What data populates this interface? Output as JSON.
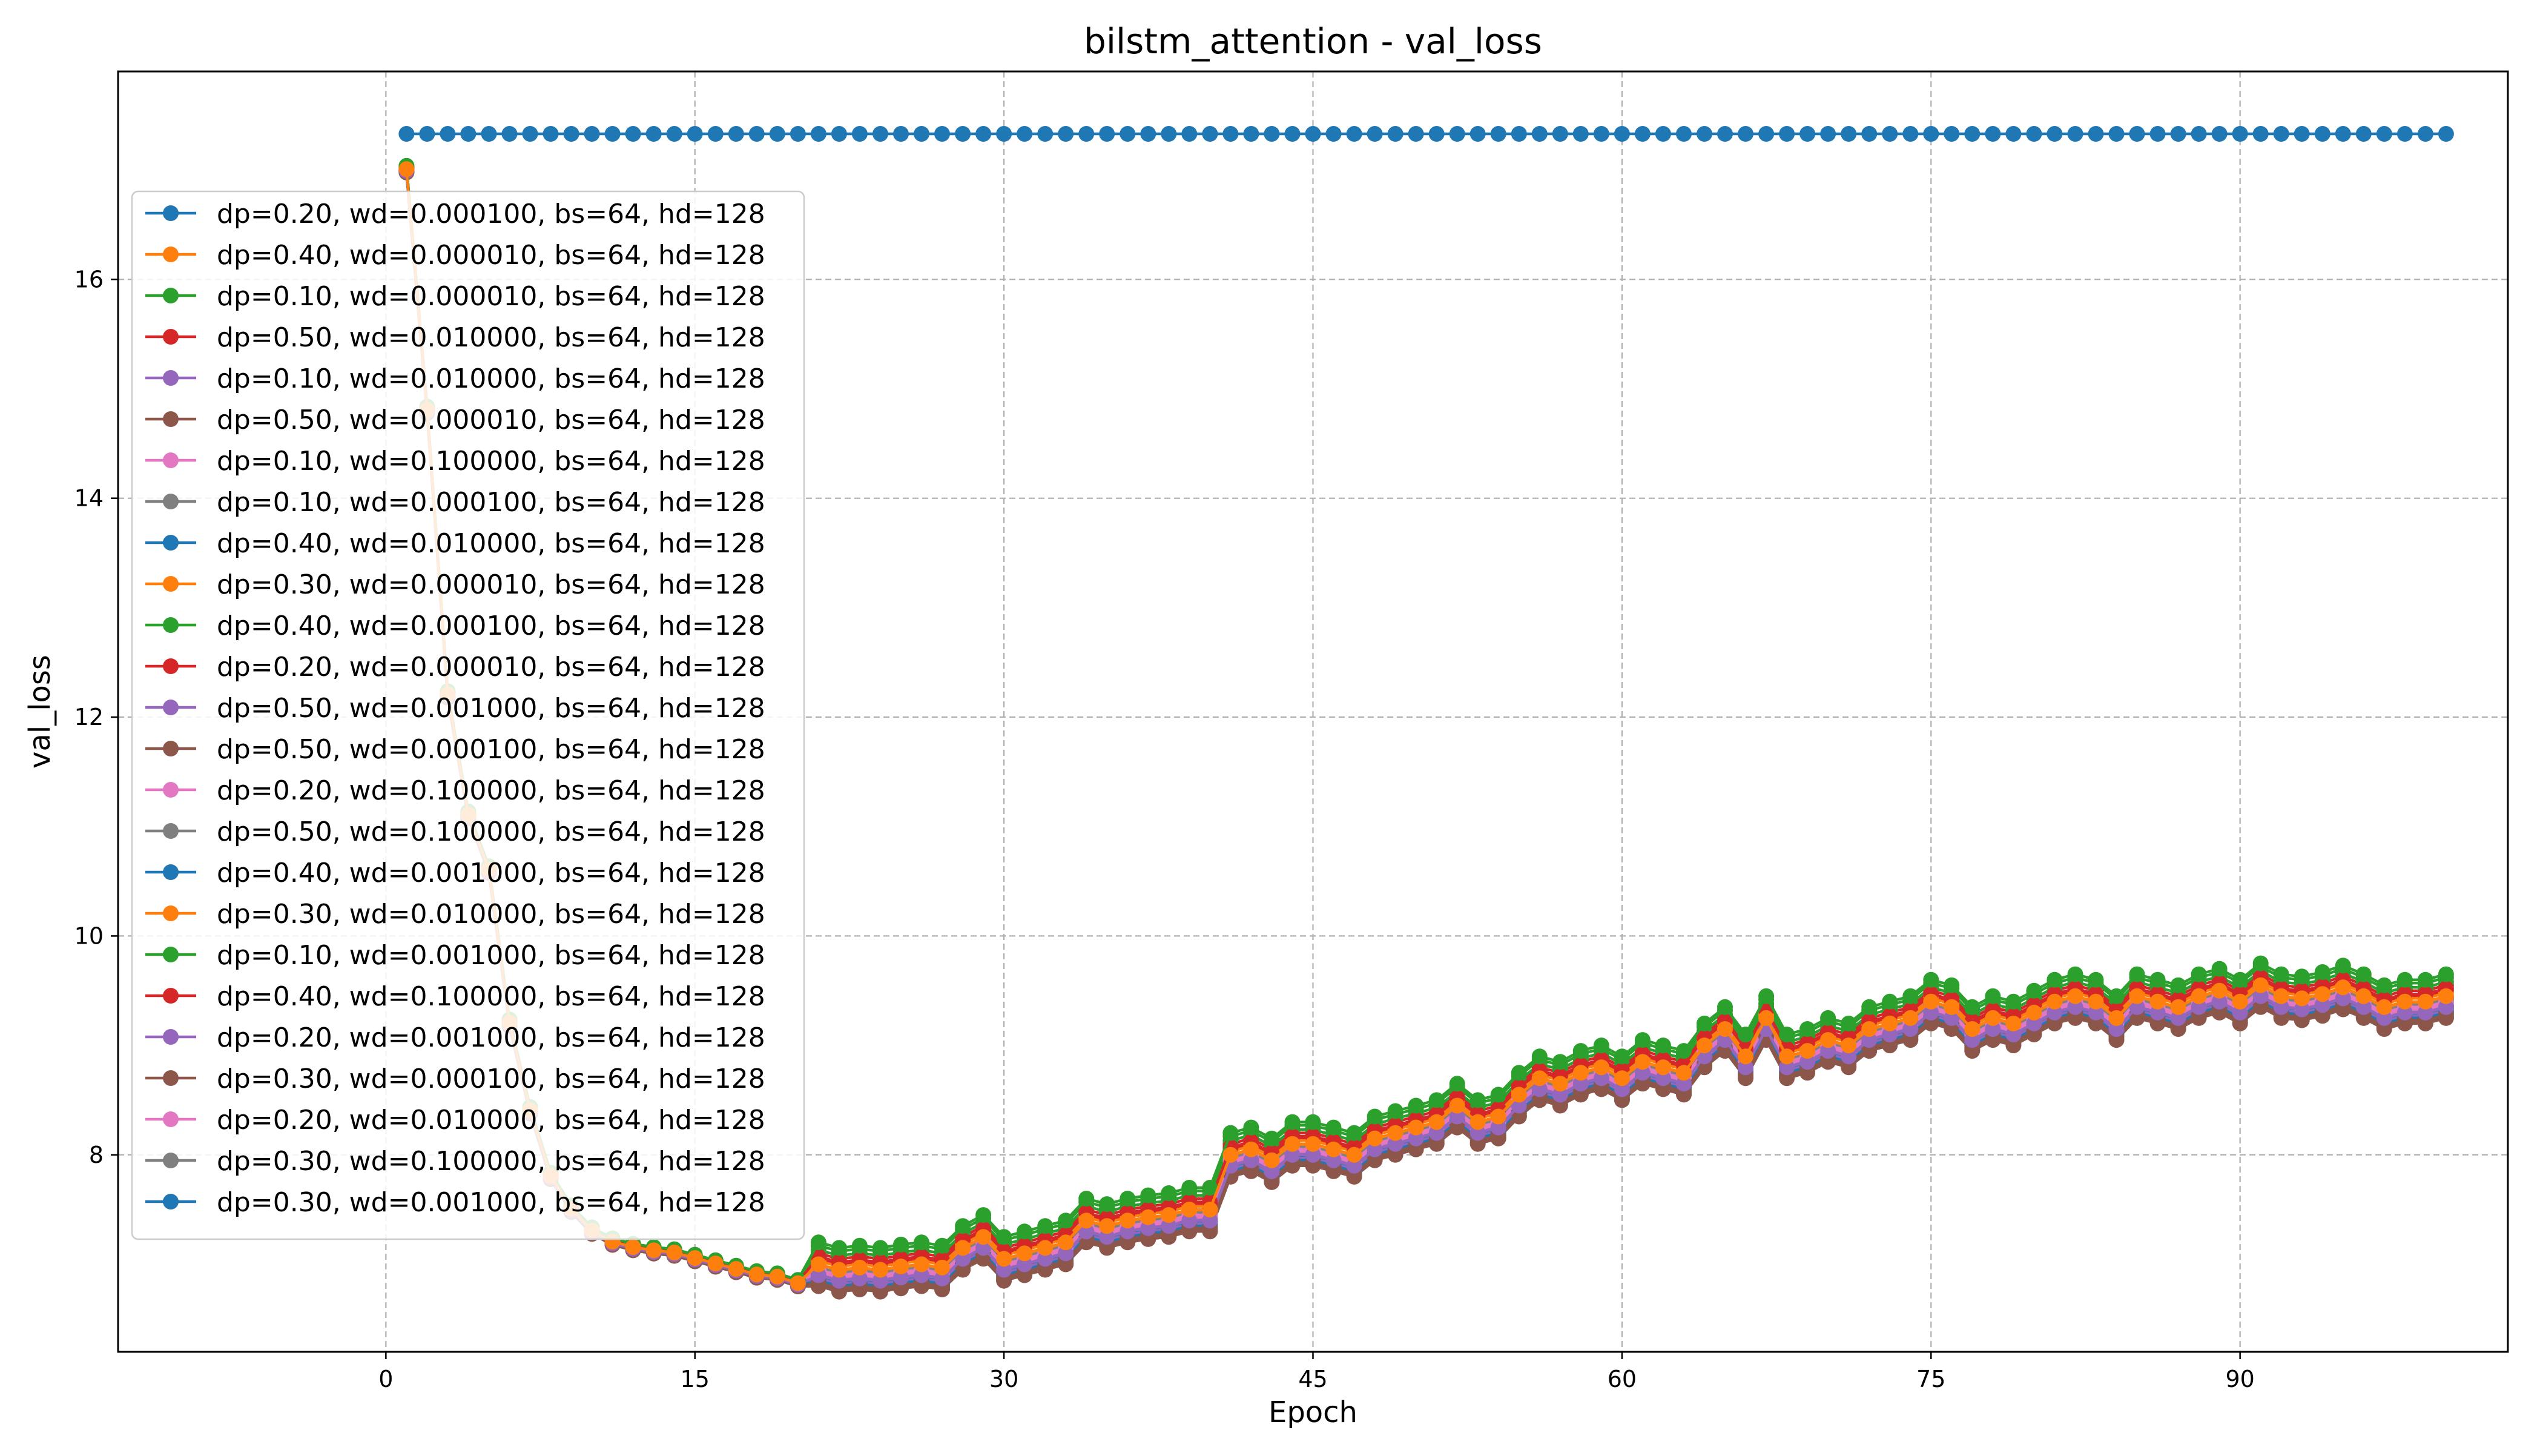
{
  "chart_data": {
    "type": "line",
    "title": "bilstm_attention - val_loss",
    "xlabel": "Epoch",
    "ylabel": "val_loss",
    "xlim": [
      -13,
      103
    ],
    "ylim": [
      6.2,
      17.9
    ],
    "xticks": [
      0,
      15,
      30,
      45,
      60,
      75,
      90
    ],
    "yticks": [
      8,
      10,
      12,
      14,
      16
    ],
    "grid": true,
    "legend_position": "upper left",
    "epochs": [
      1,
      100
    ],
    "colors": [
      "#1f77b4",
      "#ff7f0e",
      "#2ca02c",
      "#d62728",
      "#9467bd",
      "#8c564b",
      "#e377c2",
      "#7f7f7f",
      "#1f77b4",
      "#ff7f0e",
      "#2ca02c",
      "#d62728",
      "#9467bd",
      "#8c564b",
      "#e377c2",
      "#7f7f7f",
      "#1f77b4",
      "#ff7f0e",
      "#2ca02c",
      "#d62728",
      "#9467bd",
      "#8c564b",
      "#e377c2",
      "#7f7f7f",
      "#1f77b4"
    ],
    "series_names": [
      "dp=0.20, wd=0.000100, bs=64, hd=128",
      "dp=0.40, wd=0.000010, bs=64, hd=128",
      "dp=0.10, wd=0.000010, bs=64, hd=128",
      "dp=0.50, wd=0.010000, bs=64, hd=128",
      "dp=0.10, wd=0.010000, bs=64, hd=128",
      "dp=0.50, wd=0.000010, bs=64, hd=128",
      "dp=0.10, wd=0.100000, bs=64, hd=128",
      "dp=0.10, wd=0.000100, bs=64, hd=128",
      "dp=0.40, wd=0.010000, bs=64, hd=128",
      "dp=0.30, wd=0.000010, bs=64, hd=128",
      "dp=0.40, wd=0.000100, bs=64, hd=128",
      "dp=0.20, wd=0.000010, bs=64, hd=128",
      "dp=0.50, wd=0.001000, bs=64, hd=128",
      "dp=0.50, wd=0.000100, bs=64, hd=128",
      "dp=0.20, wd=0.100000, bs=64, hd=128",
      "dp=0.50, wd=0.100000, bs=64, hd=128",
      "dp=0.40, wd=0.001000, bs=64, hd=128",
      "dp=0.30, wd=0.010000, bs=64, hd=128",
      "dp=0.10, wd=0.001000, bs=64, hd=128",
      "dp=0.40, wd=0.100000, bs=64, hd=128",
      "dp=0.20, wd=0.001000, bs=64, hd=128",
      "dp=0.30, wd=0.000100, bs=64, hd=128",
      "dp=0.20, wd=0.010000, bs=64, hd=128",
      "dp=0.30, wd=0.100000, bs=64, hd=128",
      "dp=0.30, wd=0.001000, bs=64, hd=128"
    ],
    "flat_series_index": 0,
    "flat_value": 17.33,
    "base_curve": [
      17.0,
      14.8,
      12.2,
      11.1,
      10.6,
      9.2,
      8.4,
      7.8,
      7.5,
      7.3,
      7.2,
      7.15,
      7.12,
      7.1,
      7.05,
      7.0,
      6.95,
      6.9,
      6.88,
      6.82,
      6.95,
      6.9,
      6.92,
      6.9,
      6.93,
      6.95,
      6.92,
      7.1,
      7.2,
      7.0,
      7.05,
      7.1,
      7.15,
      7.35,
      7.3,
      7.35,
      7.38,
      7.4,
      7.45,
      7.45,
      7.95,
      8.0,
      7.9,
      8.05,
      8.05,
      8.0,
      7.95,
      8.1,
      8.15,
      8.2,
      8.25,
      8.4,
      8.25,
      8.3,
      8.5,
      8.65,
      8.6,
      8.7,
      8.75,
      8.65,
      8.8,
      8.75,
      8.7,
      8.95,
      9.1,
      8.85,
      9.2,
      8.85,
      8.9,
      9.0,
      8.95,
      9.1,
      9.15,
      9.2,
      9.35,
      9.3,
      9.1,
      9.2,
      9.15,
      9.25,
      9.35,
      9.4,
      9.35,
      9.2,
      9.4,
      9.35,
      9.3,
      9.4,
      9.45,
      9.35,
      9.5,
      9.4,
      9.38,
      9.42,
      9.48,
      9.4,
      9.3,
      9.35,
      9.35,
      9.4,
      9.3
    ],
    "series_offsets": [
      0,
      0.05,
      0.25,
      0.12,
      -0.05,
      -0.12,
      0.0,
      0.02,
      -0.1,
      0.08,
      0.18,
      0.15,
      -0.08,
      -0.15,
      -0.02,
      0.0,
      -0.06,
      0.04,
      0.22,
      0.1,
      -0.03,
      -0.14,
      0.01,
      0.03,
      -0.04
    ]
  }
}
